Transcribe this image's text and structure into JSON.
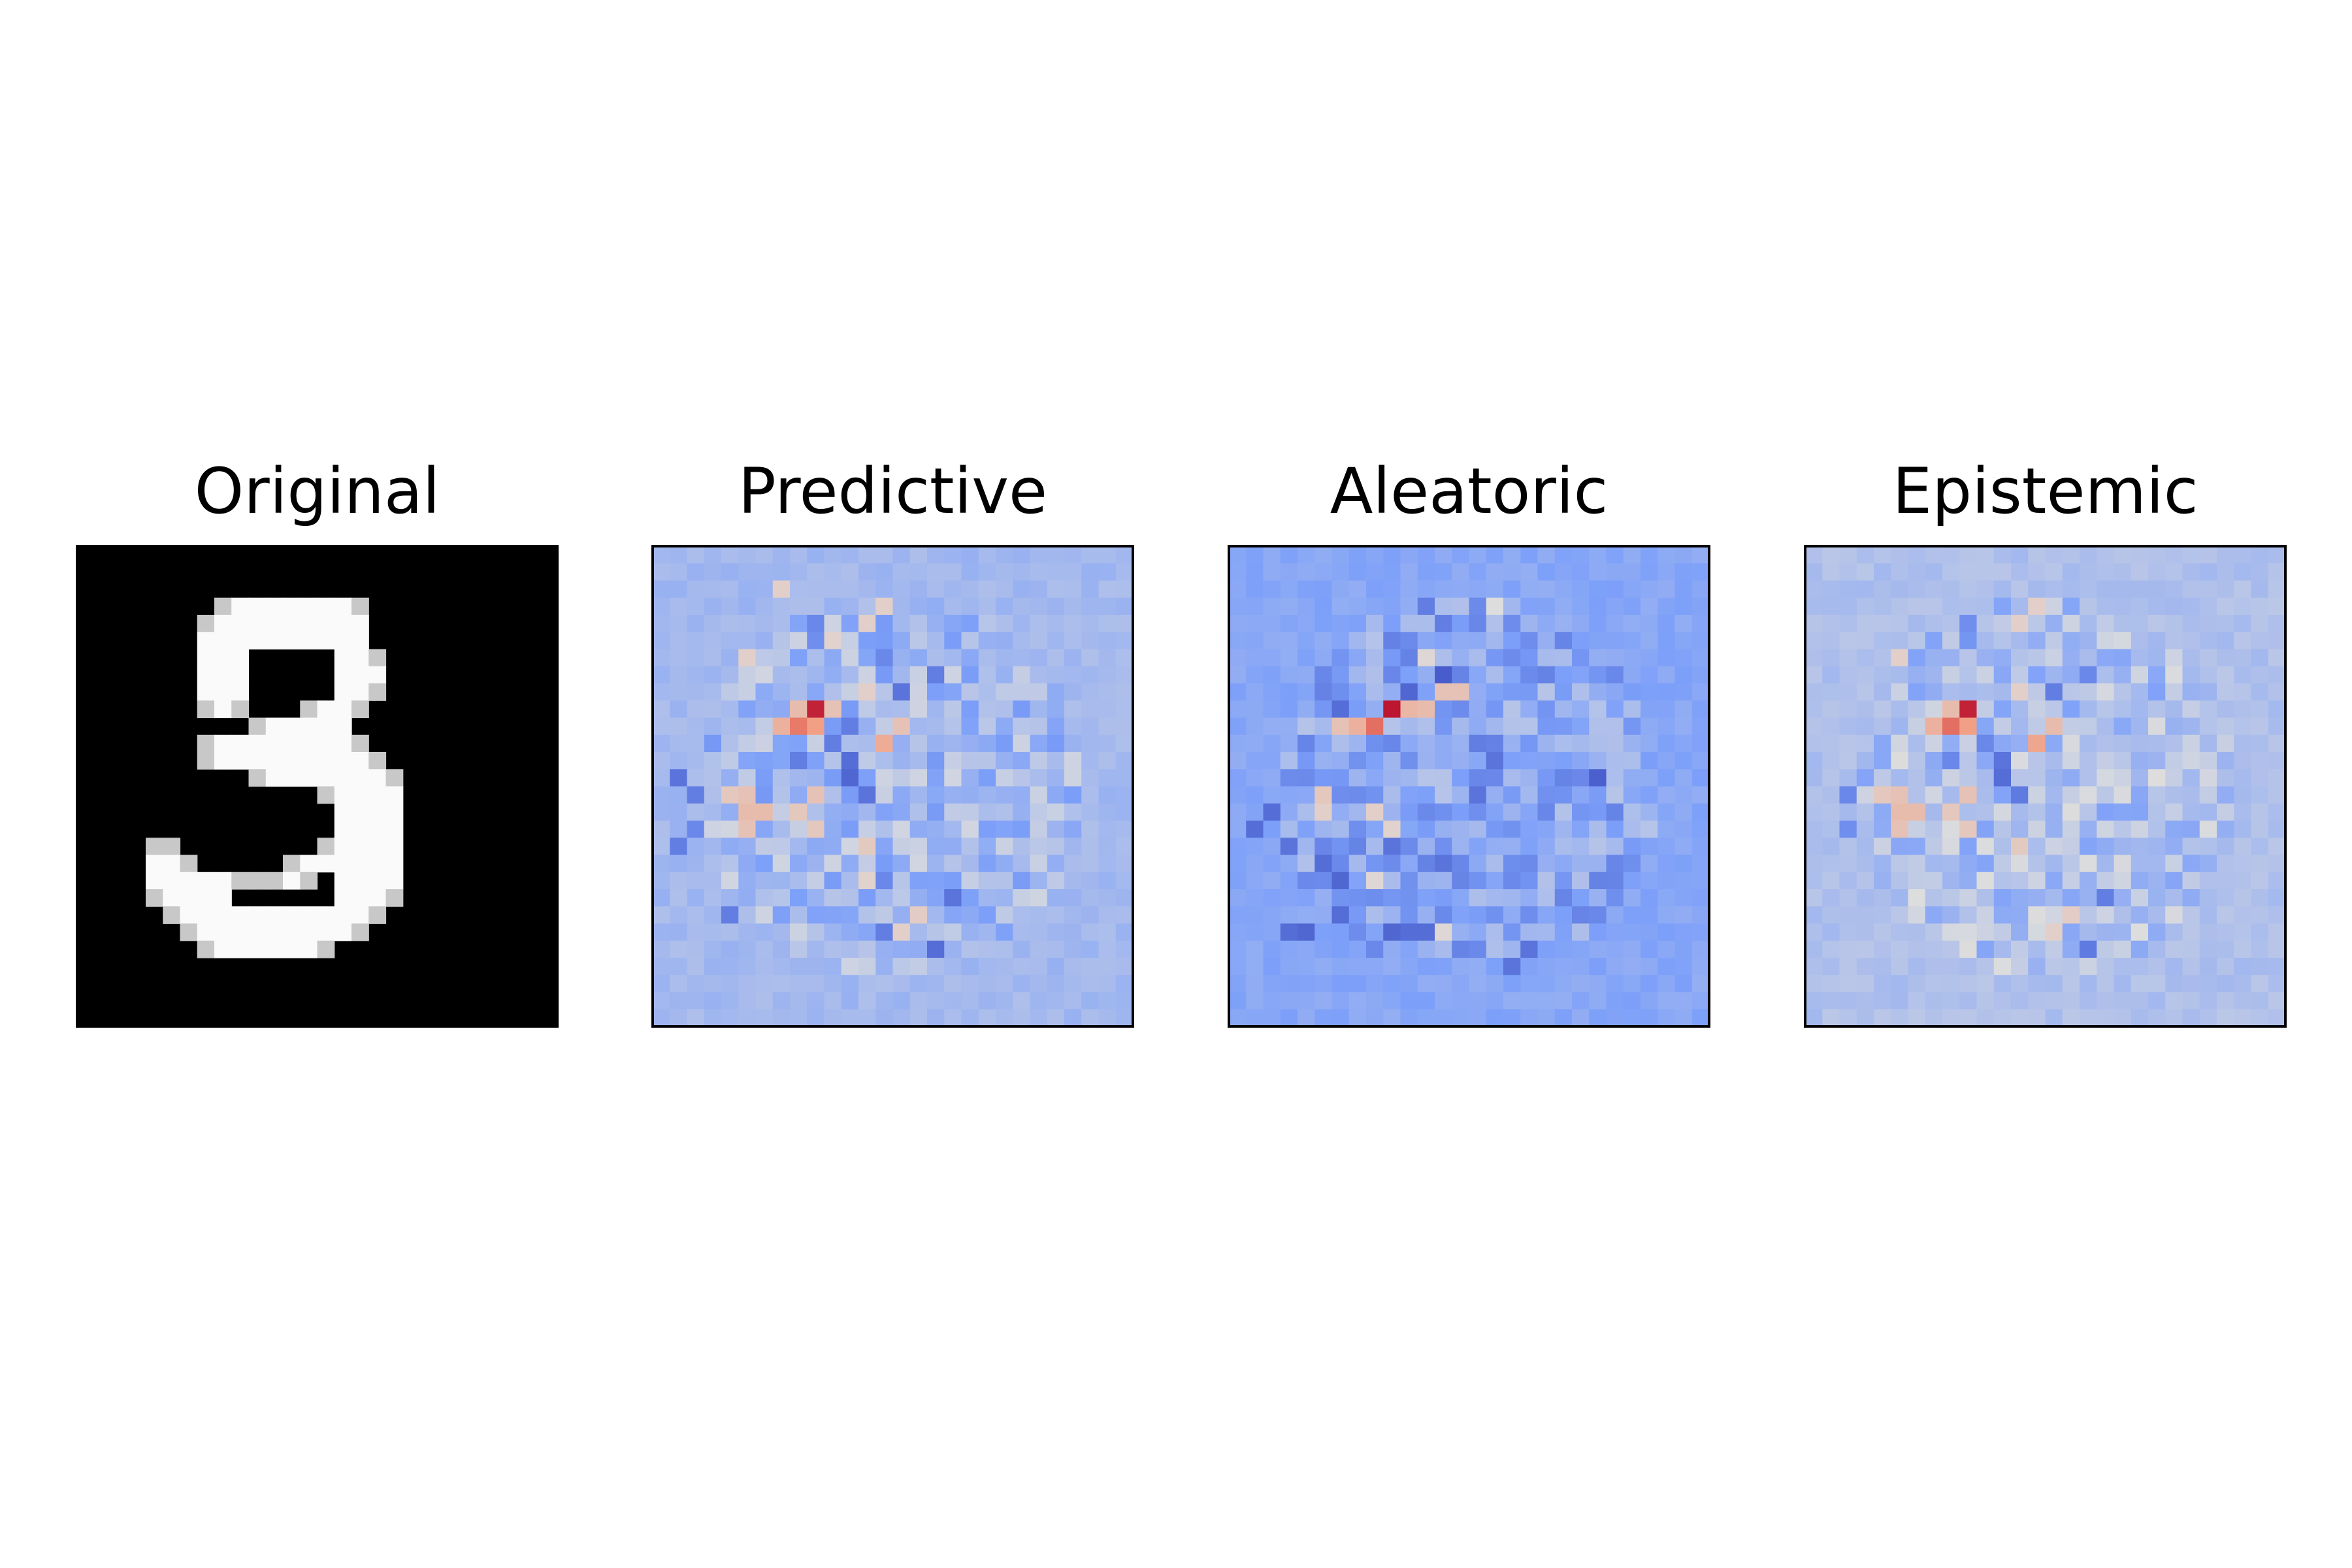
{
  "chart_data": [
    {
      "type": "heatmap",
      "title": "Original",
      "colormap": "gray",
      "grid": false,
      "axes": "off",
      "shape": [
        28,
        28
      ],
      "digit": "3",
      "rows": [
        "............................",
        "............................",
        "............................",
        "........#########...........",
        ".......##########...........",
        ".......##########...........",
        ".......###.....###..........",
        ".......###.....###..........",
        ".......###.....###..........",
        ".......###...####...........",
        "..........######............",
        ".......##########...........",
        ".......###########..........",
        "..........#########.........",
        "..............#####.........",
        "...............####.........",
        "...............####.........",
        "....##........#####.........",
        "....###.....#######.........",
        "....##########.####.........",
        "....#####......####.........",
        ".....#############..........",
        "......###########...........",
        ".......########.............",
        "............................",
        "............................",
        "............................",
        "............................"
      ]
    },
    {
      "type": "heatmap",
      "title": "Predictive",
      "colormap": "coolwarm",
      "grid": false,
      "axes": "off",
      "shape": [
        28,
        28
      ],
      "background": 0.35,
      "cells": [
        [
          9,
          9,
          0.95
        ],
        [
          10,
          8,
          0.8
        ],
        [
          10,
          9,
          0.72
        ],
        [
          11,
          13,
          0.68
        ],
        [
          10,
          7,
          0.66
        ],
        [
          9,
          8,
          0.62
        ],
        [
          10,
          14,
          0.6
        ],
        [
          9,
          10,
          0.6
        ],
        [
          15,
          6,
          0.62
        ],
        [
          15,
          5,
          0.62
        ],
        [
          16,
          5,
          0.6
        ],
        [
          14,
          4,
          0.58
        ],
        [
          14,
          5,
          0.6
        ],
        [
          15,
          8,
          0.58
        ],
        [
          16,
          9,
          0.58
        ],
        [
          14,
          9,
          0.6
        ],
        [
          17,
          12,
          0.57
        ],
        [
          3,
          13,
          0.55
        ],
        [
          4,
          12,
          0.55
        ],
        [
          2,
          7,
          0.55
        ],
        [
          5,
          10,
          0.54
        ],
        [
          6,
          5,
          0.55
        ],
        [
          8,
          12,
          0.55
        ],
        [
          21,
          15,
          0.56
        ],
        [
          22,
          14,
          0.55
        ],
        [
          19,
          12,
          0.54
        ],
        [
          12,
          11,
          0.1
        ],
        [
          13,
          11,
          0.08
        ],
        [
          14,
          12,
          0.12
        ],
        [
          11,
          10,
          0.15
        ],
        [
          10,
          11,
          0.15
        ],
        [
          12,
          8,
          0.15
        ],
        [
          8,
          14,
          0.12
        ],
        [
          7,
          16,
          0.15
        ],
        [
          13,
          1,
          0.12
        ],
        [
          14,
          2,
          0.15
        ],
        [
          16,
          2,
          0.18
        ],
        [
          21,
          4,
          0.15
        ],
        [
          23,
          16,
          0.1
        ],
        [
          20,
          17,
          0.12
        ],
        [
          19,
          13,
          0.18
        ],
        [
          17,
          1,
          0.15
        ],
        [
          22,
          13,
          0.15
        ],
        [
          4,
          9,
          0.18
        ],
        [
          5,
          9,
          0.2
        ],
        [
          6,
          13,
          0.18
        ]
      ]
    },
    {
      "type": "heatmap",
      "title": "Aleatoric",
      "colormap": "coolwarm",
      "grid": false,
      "axes": "off",
      "shape": [
        28,
        28
      ],
      "background": 0.28,
      "cells": [
        [
          9,
          9,
          0.97
        ],
        [
          10,
          8,
          0.82
        ],
        [
          10,
          7,
          0.66
        ],
        [
          9,
          10,
          0.64
        ],
        [
          9,
          11,
          0.62
        ],
        [
          8,
          12,
          0.6
        ],
        [
          8,
          13,
          0.6
        ],
        [
          10,
          6,
          0.6
        ],
        [
          14,
          5,
          0.58
        ],
        [
          15,
          5,
          0.55
        ],
        [
          15,
          8,
          0.55
        ],
        [
          16,
          9,
          0.54
        ],
        [
          19,
          8,
          0.52
        ],
        [
          6,
          11,
          0.52
        ],
        [
          3,
          15,
          0.5
        ],
        [
          22,
          12,
          0.52
        ],
        [
          7,
          12,
          0.05
        ],
        [
          8,
          10,
          0.08
        ],
        [
          9,
          6,
          0.1
        ],
        [
          13,
          21,
          0.06
        ],
        [
          12,
          15,
          0.12
        ],
        [
          15,
          2,
          0.1
        ],
        [
          16,
          1,
          0.1
        ],
        [
          17,
          3,
          0.12
        ],
        [
          18,
          5,
          0.1
        ],
        [
          19,
          6,
          0.08
        ],
        [
          22,
          3,
          0.1
        ],
        [
          22,
          4,
          0.08
        ],
        [
          21,
          6,
          0.1
        ],
        [
          22,
          9,
          0.08
        ],
        [
          22,
          10,
          0.1
        ],
        [
          22,
          11,
          0.1
        ],
        [
          23,
          17,
          0.12
        ],
        [
          24,
          16,
          0.12
        ],
        [
          4,
          12,
          0.15
        ],
        [
          3,
          11,
          0.15
        ],
        [
          17,
          9,
          0.12
        ],
        [
          18,
          12,
          0.12
        ],
        [
          11,
          14,
          0.15
        ],
        [
          14,
          14,
          0.12
        ]
      ]
    },
    {
      "type": "heatmap",
      "title": "Epistemic",
      "colormap": "coolwarm",
      "grid": false,
      "axes": "off",
      "shape": [
        28,
        28
      ],
      "background": 0.38,
      "cells": [
        [
          9,
          9,
          0.95
        ],
        [
          10,
          8,
          0.82
        ],
        [
          10,
          9,
          0.72
        ],
        [
          11,
          13,
          0.7
        ],
        [
          10,
          7,
          0.66
        ],
        [
          9,
          8,
          0.62
        ],
        [
          10,
          14,
          0.62
        ],
        [
          15,
          6,
          0.62
        ],
        [
          15,
          5,
          0.62
        ],
        [
          16,
          5,
          0.6
        ],
        [
          14,
          4,
          0.58
        ],
        [
          14,
          5,
          0.6
        ],
        [
          15,
          8,
          0.58
        ],
        [
          16,
          9,
          0.58
        ],
        [
          14,
          9,
          0.6
        ],
        [
          17,
          12,
          0.57
        ],
        [
          3,
          13,
          0.55
        ],
        [
          4,
          12,
          0.55
        ],
        [
          6,
          5,
          0.55
        ],
        [
          8,
          12,
          0.55
        ],
        [
          21,
          15,
          0.56
        ],
        [
          22,
          14,
          0.55
        ],
        [
          12,
          11,
          0.12
        ],
        [
          13,
          11,
          0.1
        ],
        [
          14,
          12,
          0.14
        ],
        [
          11,
          10,
          0.18
        ],
        [
          12,
          8,
          0.18
        ],
        [
          8,
          14,
          0.15
        ],
        [
          7,
          16,
          0.18
        ],
        [
          14,
          2,
          0.18
        ],
        [
          16,
          2,
          0.2
        ],
        [
          23,
          16,
          0.14
        ],
        [
          20,
          17,
          0.15
        ],
        [
          4,
          9,
          0.2
        ],
        [
          5,
          9,
          0.22
        ]
      ]
    }
  ]
}
